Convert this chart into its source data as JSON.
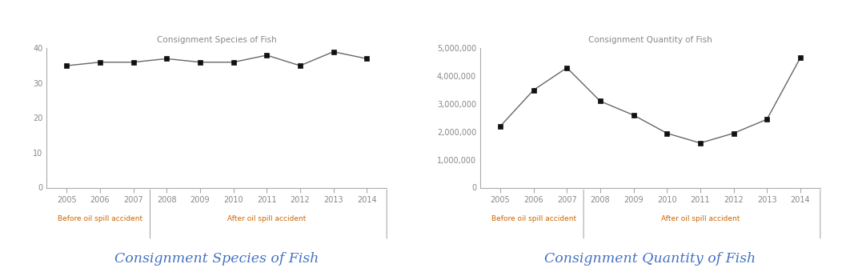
{
  "years": [
    2005,
    2006,
    2007,
    2008,
    2009,
    2010,
    2011,
    2012,
    2013,
    2014
  ],
  "species": [
    35,
    36,
    36,
    37,
    36,
    36,
    38,
    35,
    39,
    37
  ],
  "quantity": [
    2200000,
    3500000,
    4300000,
    3100000,
    2600000,
    1950000,
    1600000,
    1950000,
    2450000,
    4650000
  ],
  "title1": "Consignment Species of Fish",
  "title2": "Consignment Quantity of Fish",
  "footer1": "Consignment Species of Fish",
  "footer2": "Consignment Quantity of Fish",
  "label_before": "Before oil spill accident",
  "label_after": "After oil spill accident",
  "ylim1": [
    0,
    40
  ],
  "yticks1": [
    0,
    10,
    20,
    30,
    40
  ],
  "ylim2": [
    0,
    5000000
  ],
  "yticks2": [
    0,
    1000000,
    2000000,
    3000000,
    4000000,
    5000000
  ],
  "line_color": "#666666",
  "marker_color": "#111111",
  "title_color": "#888888",
  "before_label_color": "#cc6600",
  "after_label_color": "#cc6600",
  "footer_color": "#4472c4",
  "bg_color": "#ffffff",
  "spine_color": "#aaaaaa",
  "tick_label_color": "#888888"
}
